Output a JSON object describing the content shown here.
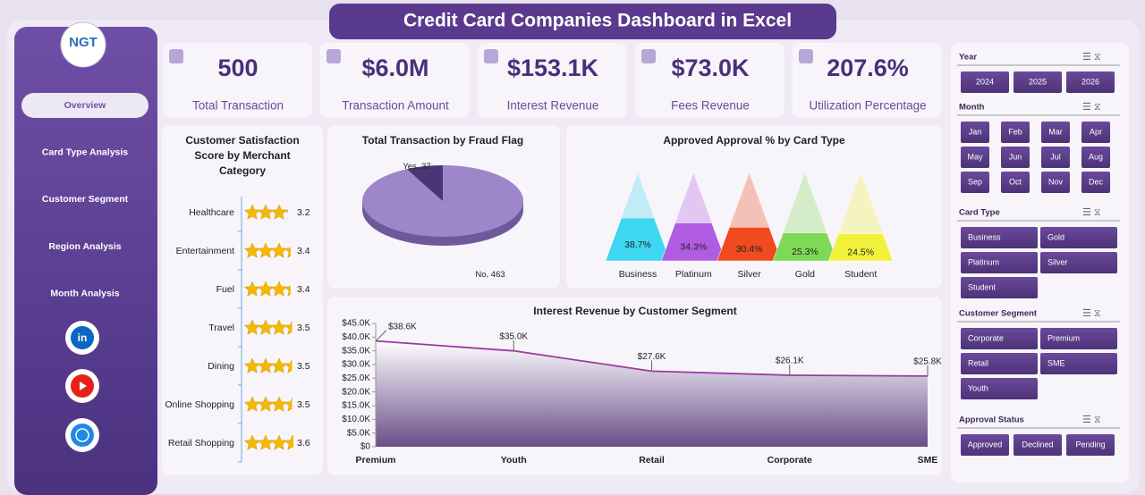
{
  "title": "Credit Card Companies Dashboard in Excel",
  "logo": "NGT",
  "nav": [
    "Overview",
    "Card Type Analysis",
    "Customer Segment",
    "Region Analysis",
    "Month Analysis"
  ],
  "kpis": [
    {
      "value": "500",
      "label": "Total Transaction"
    },
    {
      "value": "$6.0M",
      "label": "Transaction Amount"
    },
    {
      "value": "$153.1K",
      "label": "Interest Revenue"
    },
    {
      "value": "$73.0K",
      "label": "Fees Revenue"
    },
    {
      "value": "207.6%",
      "label": "Utilization Percentage"
    }
  ],
  "slicers": [
    {
      "title": "Year",
      "items": [
        "2024",
        "2025",
        "2026"
      ]
    },
    {
      "title": "Month",
      "items": [
        "Jan",
        "Feb",
        "Mar",
        "Apr",
        "May",
        "Jun",
        "Jul",
        "Aug",
        "Sep",
        "Oct",
        "Nov",
        "Dec"
      ]
    },
    {
      "title": "Card Type",
      "items": [
        "Business",
        "Gold",
        "Platinum",
        "Silver",
        "Student"
      ]
    },
    {
      "title": "Customer Segment",
      "items": [
        "Corporate",
        "Premium",
        "Retail",
        "SME",
        "Youth"
      ]
    },
    {
      "title": "Approval Status",
      "items": [
        "Approved",
        "Declined",
        "Pending"
      ]
    }
  ],
  "chart_data": [
    {
      "type": "bar",
      "title": "Customer Satisfaction Score by Merchant Category",
      "categories": [
        "Healthcare",
        "Entertainment",
        "Fuel",
        "Travel",
        "Dining",
        "Online Shopping",
        "Retail Shopping"
      ],
      "values": [
        3.2,
        3.4,
        3.4,
        3.5,
        3.5,
        3.5,
        3.6
      ],
      "color": "#f5b800"
    },
    {
      "type": "pie",
      "title": "Total Transaction by Fraud Flag",
      "categories": [
        "Yes",
        "No"
      ],
      "values": [
        37,
        463
      ],
      "colors": [
        "#4a3575",
        "#9d86c9"
      ]
    },
    {
      "type": "column",
      "title": "Approved Approval % by Card Type",
      "categories": [
        "Business",
        "Platinum",
        "Silver",
        "Gold",
        "Student"
      ],
      "values": [
        38.7,
        34.3,
        30.4,
        25.3,
        24.5
      ],
      "value_labels": [
        "38.7%",
        "34.3%",
        "30.4%",
        "25.3%",
        "24.5%"
      ],
      "colors": [
        "#3ed6f0",
        "#b05ce0",
        "#f04a20",
        "#7ed957",
        "#f2f23a"
      ]
    },
    {
      "type": "area",
      "title": "Interest Revenue by Customer Segment",
      "categories": [
        "Premium",
        "Youth",
        "Retail",
        "Corporate",
        "SME"
      ],
      "values": [
        38600,
        35000,
        27600,
        26100,
        25800
      ],
      "value_labels": [
        "$38.6K",
        "$35.0K",
        "$27.6K",
        "$26.1K",
        "$25.8K"
      ],
      "color": "#9b3aa0",
      "ylim": [
        0,
        45000
      ],
      "yticks": [
        {
          "value": 0,
          "label": "$0"
        },
        {
          "value": 5000,
          "label": "$5.0K"
        },
        {
          "value": 10000,
          "label": "$10.0K"
        },
        {
          "value": 15000,
          "label": "$15.0K"
        },
        {
          "value": 20000,
          "label": "$20.0K"
        },
        {
          "value": 25000,
          "label": "$25.0K"
        },
        {
          "value": 30000,
          "label": "$30.0K"
        },
        {
          "value": 35000,
          "label": "$35.0K"
        },
        {
          "value": 40000,
          "label": "$40.0K"
        },
        {
          "value": 45000,
          "label": "$45.0K"
        }
      ]
    }
  ]
}
